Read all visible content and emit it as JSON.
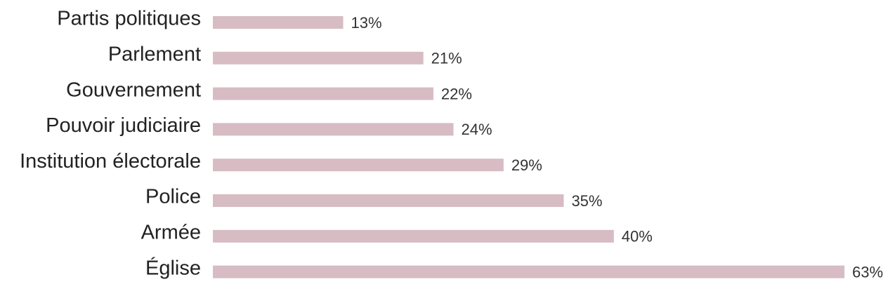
{
  "chart_data": {
    "type": "bar",
    "orientation": "horizontal",
    "categories": [
      "Partis politiques",
      "Parlement",
      "Gouvernement",
      "Pouvoir judiciaire",
      "Institution électorale",
      "Police",
      "Armée",
      "Église"
    ],
    "values": [
      13,
      21,
      22,
      24,
      29,
      35,
      40,
      63
    ],
    "value_labels": [
      "13%",
      "21%",
      "22%",
      "24%",
      "29%",
      "35%",
      "40%",
      "63%"
    ],
    "unit": "%",
    "xlim": [
      0,
      63
    ],
    "grid": false,
    "legend": "none",
    "bar_color": "#d7bcc4"
  }
}
